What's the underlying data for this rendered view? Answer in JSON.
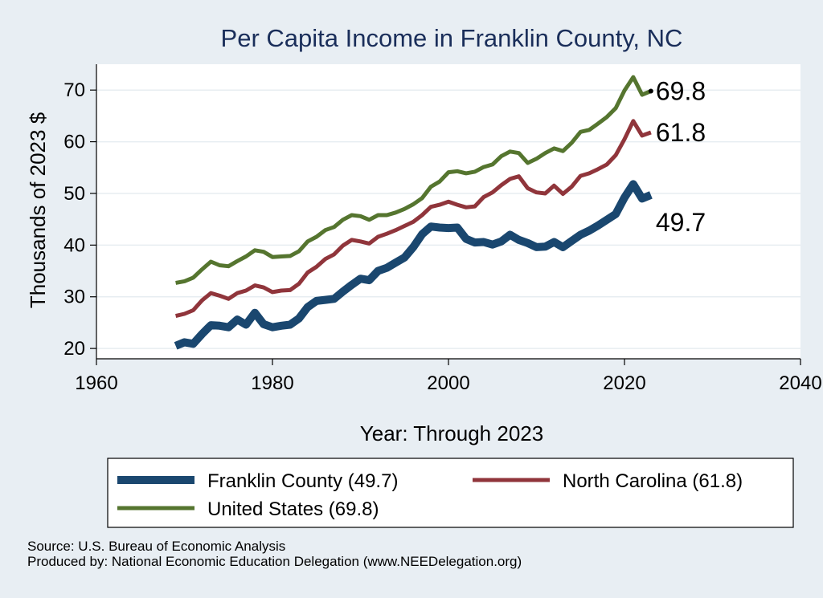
{
  "chart_data": {
    "type": "line",
    "title": "Per Capita Income in Franklin County, NC",
    "xlabel": "Year: Through 2023",
    "ylabel": "Thousands of 2023 $",
    "xlim": [
      1960,
      2040
    ],
    "ylim": [
      18,
      75
    ],
    "xticks": [
      1960,
      1980,
      2000,
      2020,
      2040
    ],
    "yticks": [
      20,
      30,
      40,
      50,
      60,
      70
    ],
    "grid": true,
    "x": [
      1969,
      1970,
      1971,
      1972,
      1973,
      1974,
      1975,
      1976,
      1977,
      1978,
      1979,
      1980,
      1981,
      1982,
      1983,
      1984,
      1985,
      1986,
      1987,
      1988,
      1989,
      1990,
      1991,
      1992,
      1993,
      1994,
      1995,
      1996,
      1997,
      1998,
      1999,
      2000,
      2001,
      2002,
      2003,
      2004,
      2005,
      2006,
      2007,
      2008,
      2009,
      2010,
      2011,
      2012,
      2013,
      2014,
      2015,
      2016,
      2017,
      2018,
      2019,
      2020,
      2021,
      2022,
      2023
    ],
    "series": [
      {
        "name": "Franklin County",
        "legend": "Franklin County (49.7)",
        "end_label": "49.7",
        "color": "#1a476f",
        "width": 10,
        "values": [
          20.5,
          21.2,
          20.9,
          22.8,
          24.5,
          24.4,
          24.1,
          25.6,
          24.6,
          26.9,
          24.7,
          24.1,
          24.4,
          24.6,
          25.8,
          28.0,
          29.2,
          29.4,
          29.6,
          31.0,
          32.3,
          33.5,
          33.2,
          35.0,
          35.6,
          36.6,
          37.6,
          39.6,
          42.1,
          43.6,
          43.4,
          43.3,
          43.4,
          41.2,
          40.5,
          40.6,
          40.1,
          40.7,
          42.0,
          41.0,
          40.4,
          39.6,
          39.7,
          40.6,
          39.6,
          40.8,
          42.0,
          42.8,
          43.8,
          44.9,
          46.0,
          49.2,
          51.8,
          49.0,
          49.7
        ]
      },
      {
        "name": "North Carolina",
        "legend": "North Carolina (61.8)",
        "end_label": "61.8",
        "color": "#90353b",
        "width": 5,
        "values": [
          26.3,
          26.7,
          27.4,
          29.3,
          30.7,
          30.2,
          29.6,
          30.7,
          31.2,
          32.2,
          31.8,
          30.9,
          31.2,
          31.3,
          32.5,
          34.7,
          35.8,
          37.3,
          38.2,
          39.9,
          41.0,
          40.7,
          40.3,
          41.6,
          42.2,
          42.9,
          43.7,
          44.5,
          45.8,
          47.4,
          47.8,
          48.4,
          47.8,
          47.3,
          47.5,
          49.3,
          50.2,
          51.6,
          52.8,
          53.3,
          51.0,
          50.2,
          50.0,
          51.5,
          49.9,
          51.3,
          53.4,
          53.9,
          54.7,
          55.6,
          57.4,
          60.5,
          64.0,
          61.2,
          61.8
        ]
      },
      {
        "name": "United States",
        "legend": "United States (69.8)",
        "end_label": "69.8",
        "color": "#55752f",
        "width": 5,
        "values": [
          32.7,
          33.0,
          33.7,
          35.3,
          36.8,
          36.1,
          35.9,
          36.9,
          37.8,
          39.0,
          38.7,
          37.7,
          37.8,
          37.9,
          38.8,
          40.7,
          41.6,
          42.9,
          43.5,
          44.9,
          45.8,
          45.6,
          44.9,
          45.8,
          45.8,
          46.3,
          47.0,
          47.9,
          49.1,
          51.3,
          52.3,
          54.1,
          54.3,
          53.9,
          54.2,
          55.1,
          55.6,
          57.2,
          58.1,
          57.8,
          55.9,
          56.7,
          57.8,
          58.7,
          58.2,
          59.8,
          61.9,
          62.3,
          63.5,
          64.8,
          66.5,
          69.9,
          72.5,
          69.1,
          69.8
        ]
      }
    ]
  },
  "footer": {
    "source": "Source: U.S. Bureau of Economic Analysis",
    "produced_by": "Produced by: National Economic Education Delegation (www.NEEDelegation.org)"
  }
}
